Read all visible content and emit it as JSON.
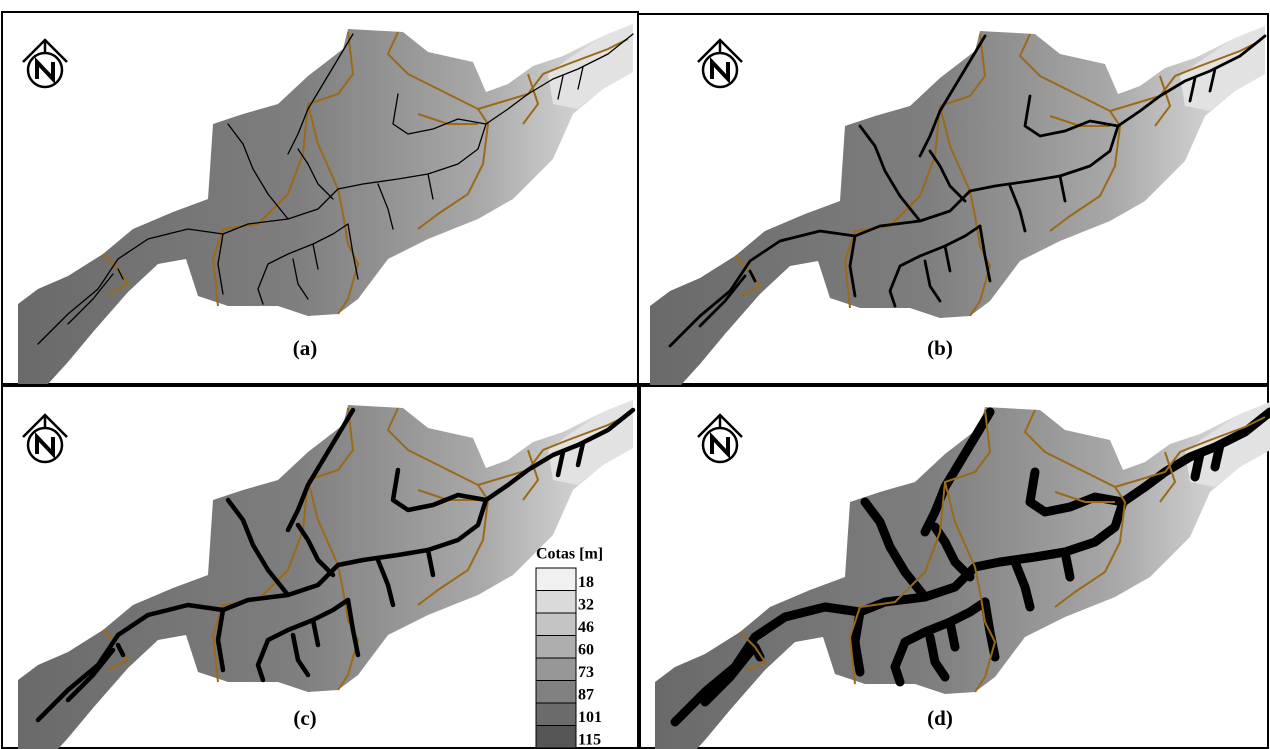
{
  "panels": [
    {
      "label": "(a)"
    },
    {
      "label": "(b)"
    },
    {
      "label": "(c)"
    },
    {
      "label": "(d)"
    }
  ],
  "legend": {
    "title": "Cotas [m]",
    "values": [
      18,
      32,
      46,
      60,
      73,
      87,
      101,
      115
    ]
  }
}
